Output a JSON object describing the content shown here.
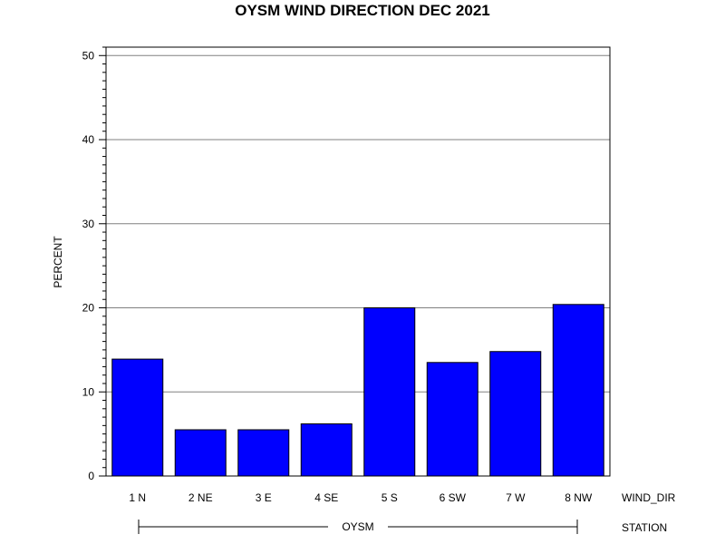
{
  "chart_data": {
    "type": "bar",
    "title": "OYSM WIND DIRECTION DEC 2021",
    "ylabel": "PERCENT",
    "xlabel": "WIND_DIR",
    "group_axis_label": "STATION",
    "group_label": "OYSM",
    "categories": [
      "1 N",
      "2 NE",
      "3 E",
      "4 SE",
      "5 S",
      "6 SW",
      "7 W",
      "8 NW"
    ],
    "values": [
      13.9,
      5.5,
      5.5,
      6.2,
      20.0,
      13.5,
      14.8,
      20.4
    ],
    "ylim": [
      0,
      51
    ],
    "yticks": [
      0,
      10,
      20,
      30,
      40,
      50
    ],
    "grid": true,
    "colors": {
      "bar": "#0000ff",
      "bar_edge": "#000000",
      "grid": "#808080"
    }
  }
}
